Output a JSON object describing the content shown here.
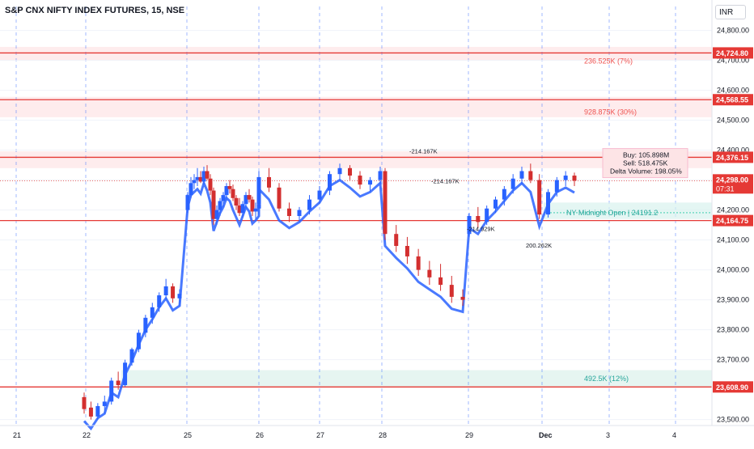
{
  "header": {
    "symbol_title": "S&P CNX NIFTY INDEX FUTURES, 15, NSE",
    "currency": "INR"
  },
  "colors": {
    "bull": "#2962ff",
    "bear": "#e91e63",
    "candle_up": "#2962ff",
    "candle_down": "#d32f2f",
    "level": "#e53935",
    "zone_red": "#fde4e6",
    "zone_green": "#e0f3ee",
    "teal": "#26c6a6",
    "magenta": "#ff1ad9"
  },
  "chart_data": {
    "type": "candlestick",
    "yrange": [
      23480,
      24880
    ],
    "x_ticks": [
      "21",
      "22",
      "25",
      "26",
      "27",
      "28",
      "29",
      "Dec",
      "3",
      "4"
    ],
    "y_ticks": [
      "24,800.00",
      "24,700.00",
      "24,600.00",
      "24,500.00",
      "24,400.00",
      "24,300.00",
      "24,200.00",
      "24,100.00",
      "24,000.00",
      "23,900.00",
      "23,800.00",
      "23,700.00",
      "23,500.00"
    ],
    "y_tick_values": [
      24800,
      24700,
      24600,
      24500,
      24400,
      24300,
      24200,
      24100,
      24000,
      23900,
      23800,
      23700,
      23500
    ],
    "levels": [
      {
        "value": 24724.8,
        "label": "24,724.80"
      },
      {
        "value": 24568.55,
        "label": "24,568.55"
      },
      {
        "value": 24376.15,
        "label": "24,376.15"
      },
      {
        "value": 24164.75,
        "label": "24,164.75"
      },
      {
        "value": 23608.9,
        "label": "23,608.90"
      }
    ],
    "last_price": {
      "value": 24298.0,
      "label": "24,298.00",
      "countdown": "07:31"
    },
    "zone_labels": [
      {
        "text": "236.525K (7%)",
        "value": 24700
      },
      {
        "text": "928.875K (30%)",
        "value": 24530
      },
      {
        "text": "492.5K (12%)",
        "value": 23640
      }
    ],
    "delta_box": {
      "buy": "Buy: 105.898M",
      "sell": "Sell: 518.475K",
      "delta": "Delta Volume: 198.05%"
    },
    "ny_label": "NY Midnight Open | 24191.2",
    "annotations": [
      "-214.167K",
      "-214.167K",
      "-214.929K",
      "200.262K"
    ],
    "candles": [
      [
        23575,
        23590,
        23520,
        23535
      ],
      [
        23540,
        23560,
        23500,
        23510
      ],
      [
        23510,
        23555,
        23500,
        23545
      ],
      [
        23545,
        23580,
        23520,
        23560
      ],
      [
        23560,
        23640,
        23550,
        23630
      ],
      [
        23630,
        23660,
        23600,
        23615
      ],
      [
        23615,
        23700,
        23610,
        23690
      ],
      [
        23690,
        23740,
        23680,
        23735
      ],
      [
        23735,
        23800,
        23725,
        23790
      ],
      [
        23790,
        23850,
        23775,
        23840
      ],
      [
        23840,
        23890,
        23820,
        23875
      ],
      [
        23875,
        23925,
        23860,
        23915
      ],
      [
        23915,
        23970,
        23900,
        23945
      ],
      [
        23945,
        23955,
        23890,
        23905
      ],
      [
        23905,
        23935,
        23880,
        23920
      ],
      [
        24200,
        24260,
        24190,
        24250
      ],
      [
        24250,
        24310,
        24240,
        24290
      ],
      [
        24290,
        24320,
        24270,
        24300
      ],
      [
        24300,
        24340,
        24280,
        24310
      ],
      [
        24310,
        24330,
        24290,
        24295
      ],
      [
        24295,
        24345,
        24285,
        24330
      ],
      [
        24330,
        24350,
        24300,
        24305
      ],
      [
        24305,
        24320,
        24250,
        24265
      ],
      [
        24265,
        24275,
        24150,
        24170
      ],
      [
        24170,
        24215,
        24150,
        24200
      ],
      [
        24200,
        24240,
        24180,
        24230
      ],
      [
        24230,
        24260,
        24210,
        24250
      ],
      [
        24250,
        24290,
        24230,
        24280
      ],
      [
        24280,
        24300,
        24255,
        24270
      ],
      [
        24270,
        24285,
        24230,
        24240
      ],
      [
        24240,
        24250,
        24200,
        24215
      ],
      [
        24215,
        24240,
        24180,
        24190
      ],
      [
        24190,
        24230,
        24175,
        24220
      ],
      [
        24220,
        24260,
        24205,
        24250
      ],
      [
        24250,
        24270,
        24225,
        24235
      ],
      [
        24235,
        24245,
        24180,
        24195
      ],
      [
        24195,
        24225,
        24170,
        24205
      ],
      [
        24205,
        24235,
        24185,
        24220
      ],
      [
        24220,
        24330,
        24210,
        24310
      ],
      [
        24310,
        24340,
        24260,
        24275
      ],
      [
        24275,
        24290,
        24195,
        24205
      ],
      [
        24205,
        24225,
        24160,
        24180
      ],
      [
        24180,
        24210,
        24160,
        24200
      ],
      [
        24200,
        24250,
        24185,
        24235
      ],
      [
        24235,
        24280,
        24220,
        24265
      ],
      [
        24265,
        24330,
        24250,
        24320
      ],
      [
        24320,
        24355,
        24300,
        24340
      ],
      [
        24340,
        24350,
        24300,
        24315
      ],
      [
        24315,
        24330,
        24270,
        24285
      ],
      [
        24285,
        24310,
        24260,
        24300
      ],
      [
        24300,
        24345,
        24285,
        24330
      ],
      [
        24330,
        24340,
        24100,
        24120
      ],
      [
        24120,
        24150,
        24060,
        24080
      ],
      [
        24080,
        24110,
        24020,
        24045
      ],
      [
        24045,
        24070,
        23980,
        24000
      ],
      [
        24000,
        24030,
        23950,
        23975
      ],
      [
        23975,
        24020,
        23930,
        23950
      ],
      [
        23950,
        23980,
        23890,
        23910
      ],
      [
        23910,
        23935,
        23880,
        23900
      ],
      [
        24120,
        24190,
        24110,
        24180
      ],
      [
        24180,
        24210,
        24140,
        24160
      ],
      [
        24160,
        24215,
        24150,
        24205
      ],
      [
        24205,
        24245,
        24190,
        24235
      ],
      [
        24235,
        24280,
        24215,
        24270
      ],
      [
        24270,
        24320,
        24255,
        24305
      ],
      [
        24305,
        24345,
        24285,
        24330
      ],
      [
        24330,
        24355,
        24290,
        24300
      ],
      [
        24300,
        24320,
        24170,
        24185
      ],
      [
        24185,
        24270,
        24175,
        24260
      ],
      [
        24260,
        24310,
        24245,
        24300
      ],
      [
        24300,
        24330,
        24280,
        24315
      ],
      [
        24315,
        24325,
        24280,
        24298
      ]
    ]
  }
}
